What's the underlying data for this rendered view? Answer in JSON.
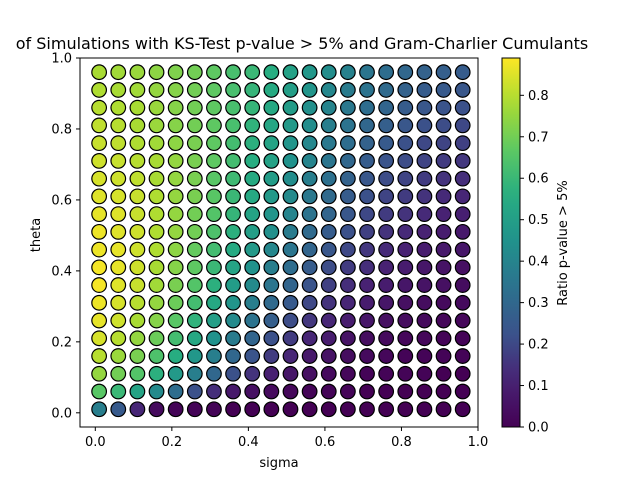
{
  "chart_data": {
    "type": "scatter",
    "title": "of Simulations with KS-Test p-value > 5% and Gram-Charlier Cumulants",
    "xlabel": "sigma",
    "ylabel": "theta",
    "colorbar_label": "Ratio p-value > 5%",
    "colormap": "viridis",
    "xlim": [
      -0.04,
      1.0
    ],
    "ylim": [
      -0.04,
      1.0
    ],
    "x_ticks": [
      0.0,
      0.2,
      0.4,
      0.6,
      0.8,
      1.0
    ],
    "x_tick_labels": [
      "0.0",
      "0.2",
      "0.4",
      "0.6",
      "0.8",
      "1.0"
    ],
    "y_ticks": [
      0.0,
      0.2,
      0.4,
      0.6,
      0.8,
      1.0
    ],
    "y_tick_labels": [
      "0.0",
      "0.2",
      "0.4",
      "0.6",
      "0.8",
      "1.0"
    ],
    "color_range": [
      0.0,
      0.89
    ],
    "colorbar_ticks": [
      0.0,
      0.1,
      0.2,
      0.3,
      0.4,
      0.5,
      0.6,
      0.7,
      0.8
    ],
    "colorbar_tick_labels": [
      "0.0",
      "0.1",
      "0.2",
      "0.3",
      "0.4",
      "0.5",
      "0.6",
      "0.7",
      "0.8"
    ],
    "x": [
      0.01,
      0.06,
      0.11,
      0.16,
      0.21,
      0.26,
      0.31,
      0.36,
      0.41,
      0.46,
      0.51,
      0.56,
      0.61,
      0.66,
      0.71,
      0.76,
      0.81,
      0.86,
      0.91,
      0.96
    ],
    "y": [
      0.01,
      0.06,
      0.11,
      0.16,
      0.21,
      0.26,
      0.31,
      0.36,
      0.41,
      0.46,
      0.51,
      0.56,
      0.61,
      0.66,
      0.71,
      0.76,
      0.81,
      0.86,
      0.91,
      0.96
    ],
    "values": [
      [
        0.38,
        0.25,
        0.12,
        0.03,
        0.01,
        0.01,
        0.01,
        0.0,
        0.0,
        0.0,
        0.0,
        0.0,
        0.0,
        0.0,
        0.0,
        0.0,
        0.0,
        0.0,
        0.0,
        0.0
      ],
      [
        0.66,
        0.6,
        0.52,
        0.42,
        0.32,
        0.22,
        0.14,
        0.08,
        0.05,
        0.03,
        0.02,
        0.01,
        0.01,
        0.01,
        0.0,
        0.0,
        0.0,
        0.0,
        0.0,
        0.0
      ],
      [
        0.75,
        0.7,
        0.65,
        0.57,
        0.48,
        0.38,
        0.3,
        0.22,
        0.15,
        0.1,
        0.07,
        0.05,
        0.03,
        0.02,
        0.01,
        0.01,
        0.01,
        0.01,
        0.0,
        0.0
      ],
      [
        0.8,
        0.76,
        0.71,
        0.64,
        0.56,
        0.47,
        0.38,
        0.3,
        0.23,
        0.17,
        0.12,
        0.08,
        0.06,
        0.04,
        0.03,
        0.02,
        0.01,
        0.01,
        0.01,
        0.01
      ],
      [
        0.84,
        0.8,
        0.75,
        0.69,
        0.62,
        0.54,
        0.45,
        0.37,
        0.29,
        0.22,
        0.17,
        0.12,
        0.09,
        0.06,
        0.04,
        0.03,
        0.02,
        0.02,
        0.01,
        0.01
      ],
      [
        0.86,
        0.83,
        0.78,
        0.73,
        0.66,
        0.58,
        0.5,
        0.42,
        0.34,
        0.27,
        0.21,
        0.16,
        0.12,
        0.09,
        0.07,
        0.05,
        0.04,
        0.03,
        0.02,
        0.02
      ],
      [
        0.87,
        0.84,
        0.8,
        0.75,
        0.69,
        0.62,
        0.54,
        0.46,
        0.38,
        0.31,
        0.25,
        0.2,
        0.15,
        0.12,
        0.09,
        0.07,
        0.05,
        0.04,
        0.03,
        0.03
      ],
      [
        0.88,
        0.85,
        0.82,
        0.77,
        0.71,
        0.65,
        0.57,
        0.49,
        0.42,
        0.35,
        0.29,
        0.23,
        0.18,
        0.14,
        0.11,
        0.09,
        0.07,
        0.06,
        0.05,
        0.04
      ],
      [
        0.88,
        0.86,
        0.83,
        0.78,
        0.73,
        0.67,
        0.6,
        0.52,
        0.45,
        0.38,
        0.32,
        0.26,
        0.21,
        0.17,
        0.14,
        0.11,
        0.09,
        0.07,
        0.06,
        0.05
      ],
      [
        0.87,
        0.86,
        0.83,
        0.79,
        0.74,
        0.68,
        0.62,
        0.55,
        0.48,
        0.41,
        0.35,
        0.29,
        0.24,
        0.2,
        0.16,
        0.13,
        0.11,
        0.09,
        0.08,
        0.07
      ],
      [
        0.87,
        0.85,
        0.83,
        0.79,
        0.75,
        0.7,
        0.64,
        0.57,
        0.5,
        0.44,
        0.37,
        0.31,
        0.26,
        0.22,
        0.18,
        0.15,
        0.13,
        0.11,
        0.09,
        0.08
      ],
      [
        0.86,
        0.85,
        0.82,
        0.79,
        0.75,
        0.7,
        0.65,
        0.59,
        0.52,
        0.46,
        0.4,
        0.34,
        0.29,
        0.24,
        0.2,
        0.17,
        0.15,
        0.13,
        0.11,
        0.1
      ],
      [
        0.85,
        0.84,
        0.82,
        0.79,
        0.75,
        0.71,
        0.66,
        0.6,
        0.54,
        0.48,
        0.42,
        0.36,
        0.31,
        0.26,
        0.22,
        0.19,
        0.17,
        0.15,
        0.13,
        0.12
      ],
      [
        0.84,
        0.83,
        0.81,
        0.78,
        0.75,
        0.71,
        0.66,
        0.61,
        0.55,
        0.49,
        0.43,
        0.38,
        0.33,
        0.28,
        0.24,
        0.21,
        0.19,
        0.17,
        0.15,
        0.14
      ],
      [
        0.83,
        0.82,
        0.8,
        0.78,
        0.75,
        0.71,
        0.67,
        0.62,
        0.56,
        0.51,
        0.45,
        0.4,
        0.35,
        0.3,
        0.26,
        0.23,
        0.21,
        0.19,
        0.17,
        0.16
      ],
      [
        0.82,
        0.81,
        0.79,
        0.77,
        0.74,
        0.71,
        0.67,
        0.62,
        0.57,
        0.52,
        0.46,
        0.41,
        0.36,
        0.32,
        0.28,
        0.25,
        0.22,
        0.2,
        0.19,
        0.18
      ],
      [
        0.81,
        0.8,
        0.78,
        0.76,
        0.73,
        0.7,
        0.67,
        0.63,
        0.58,
        0.53,
        0.48,
        0.43,
        0.38,
        0.34,
        0.3,
        0.27,
        0.24,
        0.22,
        0.21,
        0.2
      ],
      [
        0.8,
        0.79,
        0.78,
        0.76,
        0.73,
        0.7,
        0.67,
        0.63,
        0.59,
        0.54,
        0.49,
        0.44,
        0.4,
        0.36,
        0.32,
        0.29,
        0.26,
        0.24,
        0.23,
        0.22
      ],
      [
        0.79,
        0.78,
        0.77,
        0.75,
        0.73,
        0.7,
        0.67,
        0.63,
        0.59,
        0.55,
        0.5,
        0.46,
        0.41,
        0.37,
        0.34,
        0.31,
        0.28,
        0.26,
        0.25,
        0.24
      ],
      [
        0.78,
        0.77,
        0.76,
        0.74,
        0.72,
        0.7,
        0.67,
        0.63,
        0.6,
        0.56,
        0.51,
        0.47,
        0.43,
        0.39,
        0.35,
        0.32,
        0.3,
        0.28,
        0.27,
        0.26
      ]
    ]
  }
}
